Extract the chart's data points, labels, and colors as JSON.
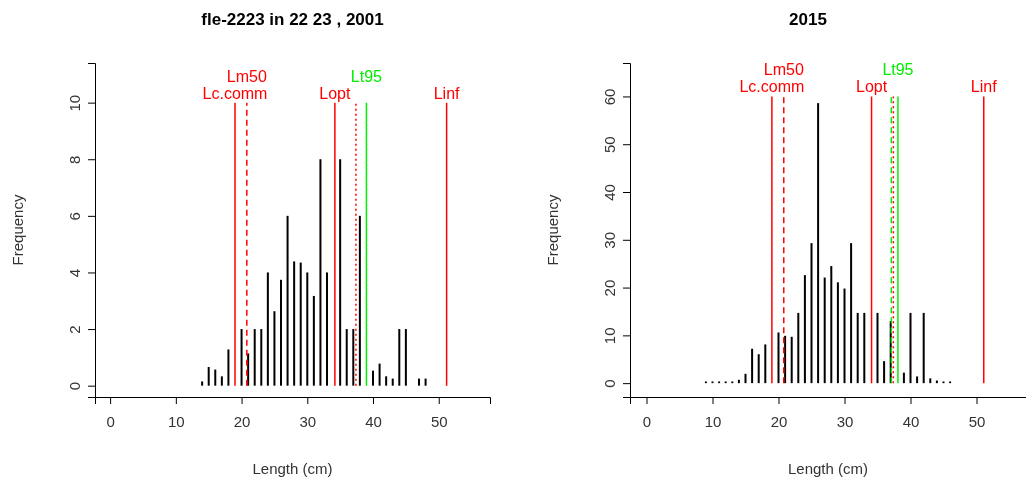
{
  "chart_data": [
    {
      "type": "bar",
      "title": "fle-2223 in 22 23 , 2001",
      "xlabel": "Length (cm)",
      "ylabel": "Frequency",
      "x": [
        14,
        15,
        16,
        17,
        18,
        20,
        21,
        22,
        23,
        24,
        25,
        26,
        27,
        28,
        29,
        30,
        31,
        32,
        33,
        35,
        36,
        37,
        38,
        40,
        41,
        42,
        43,
        44,
        45,
        47,
        48
      ],
      "values": [
        0.15,
        0.66,
        0.57,
        0.33,
        1.28,
        2,
        1.14,
        2,
        2,
        4,
        2.63,
        3.74,
        6,
        4.39,
        4.35,
        4,
        3.17,
        8,
        4,
        8,
        2,
        2,
        6,
        0.53,
        0.78,
        0.33,
        0.25,
        2,
        2,
        0.25,
        0.25
      ],
      "color": "#000000",
      "xlim": [
        -2.3,
        57.8
      ],
      "xticks": [
        0,
        10,
        20,
        30,
        40,
        50
      ],
      "ylim": [
        -0.4,
        11.4
      ],
      "yticks": [
        0,
        2,
        4,
        6,
        8,
        10
      ],
      "ref_lines": [
        {
          "axis": "x",
          "value": 19,
          "label": "Lc.comm",
          "color": "#ff0000",
          "line_style": "solid"
        },
        {
          "axis": "x",
          "value": 20.8,
          "label": "Lm50",
          "color": "#ff0000",
          "line_style": "dashed"
        },
        {
          "axis": "x",
          "value": 34.2,
          "label": "Lopt",
          "color": "#ff0000",
          "line_style": "solid"
        },
        {
          "axis": "x",
          "value": 37.4,
          "color": "#ff0000",
          "line_style": "dotted"
        },
        {
          "axis": "x",
          "value": 39,
          "label": "Lt95",
          "color": "#00ee00",
          "line_style": "solid"
        },
        {
          "axis": "x",
          "value": 51.2,
          "label": "Linf",
          "color": "#ff0000",
          "line_style": "solid"
        }
      ]
    },
    {
      "type": "bar",
      "title": "2015",
      "xlabel": "Length (cm)",
      "ylabel": "Frequency",
      "x": [
        9,
        10,
        11,
        12,
        13,
        14,
        15,
        16,
        17,
        18,
        20,
        21,
        22,
        23,
        24,
        25,
        26,
        27,
        28,
        29,
        30,
        31,
        32,
        33,
        35,
        36,
        37,
        39,
        40,
        41,
        42,
        43,
        44,
        45,
        46
      ],
      "values": [
        0.35,
        0.35,
        0.35,
        0.35,
        0.35,
        0.7,
        1.95,
        7.2,
        6.05,
        8.1,
        10.6,
        9.9,
        9.7,
        14.7,
        22.6,
        29.3,
        58.6,
        22.1,
        24.5,
        21.1,
        19.8,
        29.3,
        14.7,
        14.7,
        14.7,
        4.6,
        13,
        2.2,
        14.7,
        1.4,
        14.7,
        1,
        0.55,
        0.35,
        0.35
      ],
      "color": "#000000",
      "xlim": [
        -2.5,
        57.5
      ],
      "xticks": [
        0,
        10,
        20,
        30,
        40,
        50
      ],
      "ylim": [
        -2.9,
        67
      ],
      "yticks": [
        0,
        10,
        20,
        30,
        40,
        50,
        60
      ],
      "ref_lines": [
        {
          "axis": "x",
          "value": 19,
          "label": "Lc.comm",
          "color": "#ff0000",
          "line_style": "solid"
        },
        {
          "axis": "x",
          "value": 20.8,
          "label": "Lm50",
          "color": "#ff0000",
          "line_style": "dashed"
        },
        {
          "axis": "x",
          "value": 34.1,
          "label": "Lopt",
          "color": "#ff0000",
          "line_style": "solid"
        },
        {
          "axis": "x",
          "value": 37.1,
          "color": "#00ee00",
          "line_style": "dashed"
        },
        {
          "axis": "x",
          "value": 37.4,
          "color": "#ff0000",
          "line_style": "dotted"
        },
        {
          "axis": "x",
          "value": 38.1,
          "label": "Lt95",
          "color": "#00ee00",
          "line_style": "solid"
        },
        {
          "axis": "x",
          "value": 51.1,
          "label": "Linf",
          "color": "#ff0000",
          "line_style": "solid"
        }
      ]
    }
  ]
}
